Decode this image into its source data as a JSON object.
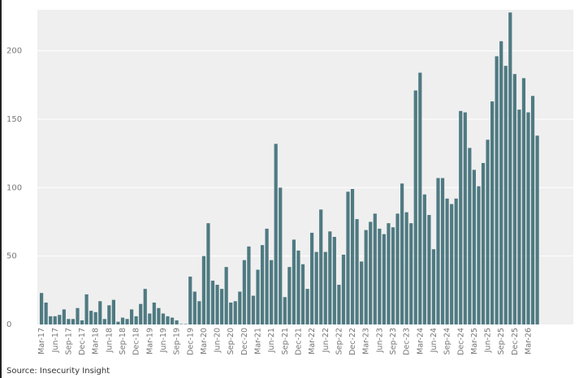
{
  "source": "Source: Insecurity Insight",
  "chart_data": {
    "type": "bar",
    "title": "",
    "xlabel": "",
    "ylabel": "",
    "ylim": [
      0,
      230
    ],
    "y_ticks": [
      0,
      50,
      100,
      150,
      200
    ],
    "grid": "horizontal",
    "colors": {
      "bar": "#4f7a82",
      "plot_bg": "#efefef",
      "grid": "#ffffff",
      "tick_text": "#777777"
    },
    "categories": [
      "Mar-17",
      "Apr-17",
      "May-17",
      "Jun-17",
      "Jul-17",
      "Aug-17",
      "Sep-17",
      "Oct-17",
      "Nov-17",
      "Dec-17",
      "Jan-18",
      "Feb-18",
      "Mar-18",
      "Apr-18",
      "May-18",
      "Jun-18",
      "Jul-18",
      "Aug-18",
      "Sep-18",
      "Oct-18",
      "Nov-18",
      "Dec-18",
      "Jan-19",
      "Feb-19",
      "Mar-19",
      "Apr-19",
      "May-19",
      "Jun-19",
      "Jul-19",
      "Aug-19",
      "Sep-19",
      "Oct-19",
      "Nov-19",
      "Dec-19",
      "Jan-20",
      "Feb-20",
      "Mar-20",
      "Apr-20",
      "May-20",
      "Jun-20",
      "Jul-20",
      "Aug-20",
      "Sep-20",
      "Oct-20",
      "Nov-20",
      "Dec-20",
      "Jan-21",
      "Feb-21",
      "Mar-21",
      "Apr-21",
      "May-21",
      "Jun-21",
      "Jul-21",
      "Aug-21",
      "Sep-21",
      "Oct-21",
      "Nov-21",
      "Dec-21",
      "Jan-22",
      "Feb-22",
      "Mar-22",
      "Apr-22",
      "May-22",
      "Jun-22",
      "Jul-22",
      "Aug-22",
      "Sep-22",
      "Oct-22",
      "Nov-22",
      "Dec-22",
      "Jan-23",
      "Feb-23",
      "Mar-23",
      "Apr-23",
      "May-23",
      "Jun-23",
      "Jul-23",
      "Aug-23",
      "Sep-23",
      "Oct-23",
      "Nov-23",
      "Dec-23",
      "Jan-24",
      "Feb-24",
      "Mar-24",
      "Apr-24",
      "May-24",
      "Jun-24",
      "Jul-24",
      "Aug-24",
      "Sep-24",
      "Oct-24",
      "Nov-24",
      "Dec-24",
      "Jan-25",
      "Feb-25",
      "Mar-25",
      "Apr-25",
      "May-25",
      "Jun-25",
      "Jul-25",
      "Aug-25",
      "Sep-25",
      "Oct-25",
      "Nov-25",
      "Dec-25",
      "Jan-26",
      "Feb-26",
      "Mar-26",
      "Apr-26",
      "May-26"
    ],
    "tick_labels": [
      "Mar-17",
      "Jun-17",
      "Sep-17",
      "Dec-17",
      "Mar-18",
      "Jun-18",
      "Sep-18",
      "Dec-18",
      "Mar-19",
      "Jun-19",
      "Sep-19",
      "Dec-19",
      "Mar-20",
      "Jun-20",
      "Sep-20",
      "Dec-20",
      "Mar-21",
      "Jun-21",
      "Sep-21",
      "Dec-21",
      "Mar-22",
      "Jun-22",
      "Sep-22",
      "Dec-22",
      "Mar-23",
      "Jun-23",
      "Sep-23",
      "Dec-23",
      "Mar-24",
      "Jun-24",
      "Sep-24",
      "Dec-24",
      "Mar-25",
      "Jun-25",
      "Sep-25",
      "Dec-25",
      "Mar-26"
    ],
    "values": [
      23,
      16,
      6,
      6,
      7,
      11,
      4,
      4,
      12,
      3,
      22,
      10,
      9,
      17,
      4,
      14,
      18,
      2,
      5,
      4,
      11,
      6,
      15,
      26,
      8,
      16,
      12,
      8,
      6,
      5,
      3,
      0,
      0,
      35,
      24,
      17,
      50,
      74,
      32,
      29,
      26,
      42,
      16,
      17,
      24,
      47,
      57,
      21,
      40,
      58,
      70,
      47,
      132,
      100,
      20,
      42,
      62,
      54,
      44,
      26,
      67,
      53,
      84,
      53,
      68,
      64,
      29,
      51,
      97,
      99,
      77,
      46,
      69,
      75,
      81,
      70,
      66,
      74,
      71,
      81,
      103,
      82,
      74,
      171,
      184,
      95,
      80,
      55,
      107,
      107,
      92,
      88,
      92,
      156,
      155,
      129,
      113,
      101,
      118,
      135,
      163,
      196,
      207,
      189,
      228,
      183,
      157,
      180,
      155,
      167,
      138
    ]
  }
}
